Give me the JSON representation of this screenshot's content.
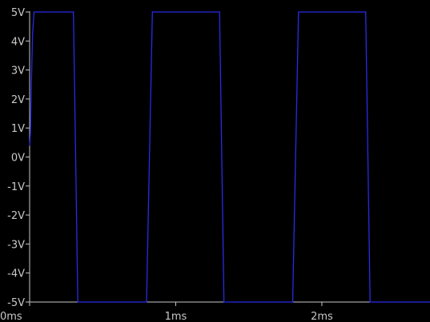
{
  "chart_data": {
    "type": "line",
    "title": "",
    "xlabel": "",
    "ylabel": "",
    "xlim": [
      0,
      2.74
    ],
    "ylim": [
      -5,
      5
    ],
    "grid": false,
    "x_ticks": [
      {
        "value": 0,
        "label": "0ms"
      },
      {
        "value": 1,
        "label": "1ms"
      },
      {
        "value": 2,
        "label": "2ms"
      }
    ],
    "y_ticks": [
      {
        "value": 5,
        "label": "5V"
      },
      {
        "value": 4,
        "label": "4V"
      },
      {
        "value": 3,
        "label": "3V"
      },
      {
        "value": 2,
        "label": "2V"
      },
      {
        "value": 1,
        "label": "1V"
      },
      {
        "value": 0,
        "label": "0V"
      },
      {
        "value": -1,
        "label": "-1V"
      },
      {
        "value": -2,
        "label": "-2V"
      },
      {
        "value": -3,
        "label": "-3V"
      },
      {
        "value": -4,
        "label": "-4V"
      },
      {
        "value": -5,
        "label": "-5V"
      }
    ],
    "series": [
      {
        "color": "#2a2ae6",
        "x": [
          0,
          0.005,
          0.01,
          0.02,
          0.03,
          0.3,
          0.33,
          0.8,
          0.84,
          1.3,
          1.33,
          1.8,
          1.84,
          2.3,
          2.33,
          2.74
        ],
        "y": [
          0.4,
          0.8,
          2.0,
          4.2,
          5.0,
          5.0,
          -5.0,
          -5.0,
          5.0,
          5.0,
          -5.0,
          -5.0,
          5.0,
          5.0,
          -5.0,
          -5.0
        ]
      }
    ]
  },
  "colors": {
    "background": "#000000",
    "axis": "#c8c8c8",
    "tick_label": "#c8c8c8"
  }
}
